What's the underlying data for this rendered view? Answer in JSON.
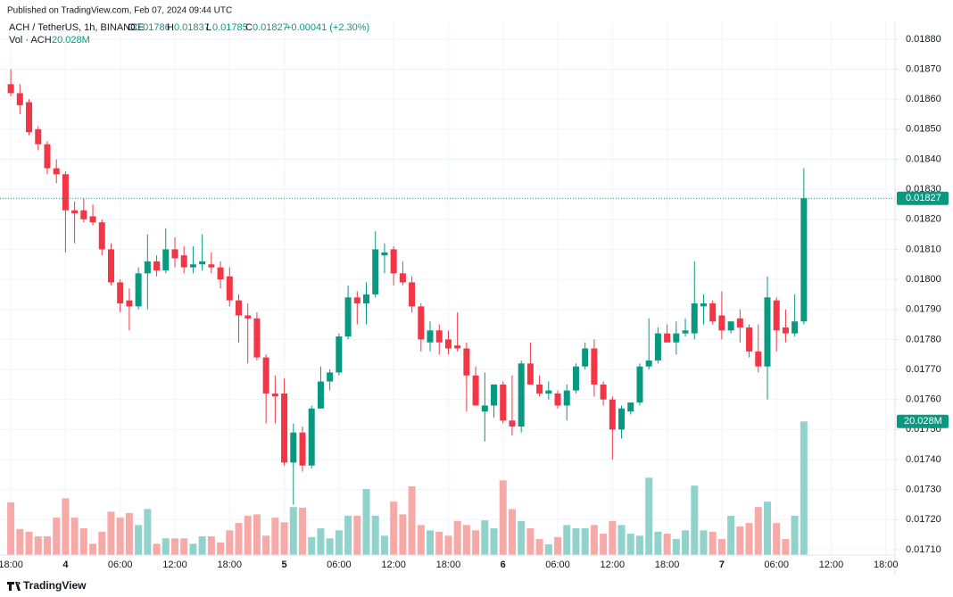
{
  "header": {
    "published": "Published on TradingView.com, Feb 07, 2024 09:44 UTC",
    "brand": "TradingView"
  },
  "chart_data": {
    "type": "candlestick",
    "title": "ACH / TetherUS, 1h, BINANCE",
    "legend_labels": {
      "open": "O",
      "high": "H",
      "low": "L",
      "close": "C"
    },
    "change": "+0.00041 (+2.30%)",
    "up_color": "#089981",
    "down_color": "#f23645",
    "x": [
      "3 18:00",
      "3 19:00",
      "3 20:00",
      "3 21:00",
      "3 22:00",
      "3 23:00",
      "4 00:00",
      "4 01:00",
      "4 02:00",
      "4 03:00",
      "4 04:00",
      "4 05:00",
      "4 06:00",
      "4 07:00",
      "4 08:00",
      "4 09:00",
      "4 10:00",
      "4 11:00",
      "4 12:00",
      "4 13:00",
      "4 14:00",
      "4 15:00",
      "4 16:00",
      "4 17:00",
      "4 18:00",
      "4 19:00",
      "4 20:00",
      "4 21:00",
      "4 22:00",
      "4 23:00",
      "5 00:00",
      "5 01:00",
      "5 02:00",
      "5 03:00",
      "5 04:00",
      "5 05:00",
      "5 06:00",
      "5 07:00",
      "5 08:00",
      "5 09:00",
      "5 10:00",
      "5 11:00",
      "5 12:00",
      "5 13:00",
      "5 14:00",
      "5 15:00",
      "5 16:00",
      "5 17:00",
      "5 18:00",
      "5 19:00",
      "5 20:00",
      "5 21:00",
      "5 22:00",
      "5 23:00",
      "6 00:00",
      "6 01:00",
      "6 02:00",
      "6 03:00",
      "6 04:00",
      "6 05:00",
      "6 06:00",
      "6 07:00",
      "6 08:00",
      "6 09:00",
      "6 10:00",
      "6 11:00",
      "6 12:00",
      "6 13:00",
      "6 14:00",
      "6 15:00",
      "6 16:00",
      "6 17:00",
      "6 18:00",
      "6 19:00",
      "6 20:00",
      "6 21:00",
      "6 22:00",
      "6 23:00",
      "7 00:00",
      "7 01:00",
      "7 02:00",
      "7 03:00",
      "7 04:00",
      "7 05:00",
      "7 06:00",
      "7 07:00",
      "7 08:00",
      "7 09:00"
    ],
    "open": [
      0.01865,
      0.01862,
      0.01859,
      0.0185,
      0.01845,
      0.01837,
      0.01835,
      0.01823,
      0.01823,
      0.01821,
      0.01819,
      0.0181,
      0.01799,
      0.01793,
      0.01791,
      0.01802,
      0.01806,
      0.01803,
      0.0181,
      0.01808,
      0.01804,
      0.01805,
      0.01805,
      0.01804,
      0.01801,
      0.01793,
      0.01788,
      0.01787,
      0.01774,
      0.01762,
      0.01762,
      0.01739,
      0.01749,
      0.01738,
      0.01757,
      0.01766,
      0.01769,
      0.01781,
      0.01794,
      0.01792,
      0.01795,
      0.01808,
      0.0181,
      0.01802,
      0.01799,
      0.01791,
      0.01779,
      0.01783,
      0.0178,
      0.01778,
      0.01777,
      0.01768,
      0.01756,
      0.01758,
      0.01765,
      0.01753,
      0.01751,
      0.01772,
      0.01765,
      0.01762,
      0.01762,
      0.01758,
      0.01763,
      0.01771,
      0.01777,
      0.01765,
      0.0176,
      0.0175,
      0.01756,
      0.01759,
      0.01771,
      0.01773,
      0.01782,
      0.01779,
      0.01782,
      0.01782,
      0.01791,
      0.01792,
      0.01788,
      0.01783,
      0.01787,
      0.01784,
      0.01776,
      0.01771,
      0.01793,
      0.01784,
      0.01782,
      0.01786
    ],
    "high": [
      0.0187,
      0.01865,
      0.0186,
      0.01851,
      0.01846,
      0.0184,
      0.01836,
      0.01826,
      0.01827,
      0.01825,
      0.0182,
      0.01812,
      0.018,
      0.01797,
      0.01804,
      0.01815,
      0.01808,
      0.01817,
      0.01814,
      0.01811,
      0.01811,
      0.01815,
      0.01809,
      0.01806,
      0.01804,
      0.01795,
      0.01792,
      0.01789,
      0.01775,
      0.01768,
      0.01767,
      0.01752,
      0.01751,
      0.01758,
      0.01771,
      0.0177,
      0.01782,
      0.01798,
      0.01796,
      0.01799,
      0.01816,
      0.01812,
      0.01811,
      0.01806,
      0.01801,
      0.01792,
      0.01786,
      0.01785,
      0.01783,
      0.01789,
      0.01779,
      0.01771,
      0.01769,
      0.01765,
      0.01766,
      0.01768,
      0.01773,
      0.01779,
      0.01768,
      0.01766,
      0.01763,
      0.01765,
      0.01772,
      0.01779,
      0.0178,
      0.01766,
      0.01761,
      0.01758,
      0.01759,
      0.01772,
      0.01787,
      0.01784,
      0.01785,
      0.01786,
      0.01787,
      0.01806,
      0.01795,
      0.01793,
      0.01796,
      0.01786,
      0.0179,
      0.01785,
      0.01785,
      0.01801,
      0.01794,
      0.0179,
      0.01795,
      0.01837
    ],
    "low": [
      0.01861,
      0.01855,
      0.01848,
      0.01843,
      0.01835,
      0.01832,
      0.01809,
      0.01812,
      0.01819,
      0.01818,
      0.01808,
      0.01798,
      0.01789,
      0.01783,
      0.0179,
      0.0179,
      0.01801,
      0.01802,
      0.01804,
      0.01802,
      0.01802,
      0.01803,
      0.01802,
      0.01797,
      0.01791,
      0.01779,
      0.01772,
      0.01773,
      0.01752,
      0.01752,
      0.01738,
      0.01725,
      0.01736,
      0.01737,
      0.01757,
      0.01763,
      0.01768,
      0.0178,
      0.01785,
      0.01785,
      0.01794,
      0.01802,
      0.01798,
      0.01798,
      0.01789,
      0.01776,
      0.01776,
      0.01775,
      0.01775,
      0.01776,
      0.01756,
      0.01758,
      0.01746,
      0.01754,
      0.01752,
      0.01748,
      0.01749,
      0.01765,
      0.01761,
      0.0176,
      0.01757,
      0.01753,
      0.01762,
      0.0177,
      0.01761,
      0.01758,
      0.0174,
      0.01747,
      0.01755,
      0.01758,
      0.0177,
      0.01772,
      0.01779,
      0.01775,
      0.01781,
      0.0178,
      0.01785,
      0.01785,
      0.0178,
      0.01782,
      0.01779,
      0.01774,
      0.01769,
      0.0176,
      0.01776,
      0.01779,
      0.01781,
      0.01785
    ],
    "close": [
      0.01862,
      0.01858,
      0.01849,
      0.01845,
      0.01837,
      0.01835,
      0.01823,
      0.01822,
      0.0182,
      0.01819,
      0.0181,
      0.01799,
      0.01792,
      0.01791,
      0.01802,
      0.01806,
      0.01803,
      0.0181,
      0.01807,
      0.01804,
      0.01805,
      0.01806,
      0.01804,
      0.018,
      0.01793,
      0.01788,
      0.01787,
      0.01774,
      0.01762,
      0.01761,
      0.01739,
      0.01749,
      0.01738,
      0.01757,
      0.01766,
      0.01769,
      0.01781,
      0.01794,
      0.01792,
      0.01795,
      0.0181,
      0.01809,
      0.01802,
      0.01799,
      0.01791,
      0.0178,
      0.01783,
      0.01779,
      0.01777,
      0.01777,
      0.01768,
      0.01758,
      0.01758,
      0.01765,
      0.01753,
      0.01751,
      0.01772,
      0.01765,
      0.01762,
      0.01763,
      0.01758,
      0.01763,
      0.01771,
      0.01777,
      0.01765,
      0.0176,
      0.0175,
      0.01757,
      0.01759,
      0.01771,
      0.01773,
      0.01782,
      0.01779,
      0.01782,
      0.01783,
      0.01792,
      0.01792,
      0.01786,
      0.01783,
      0.01786,
      0.01784,
      0.01776,
      0.01771,
      0.01794,
      0.01783,
      0.01782,
      0.01786,
      0.01827
    ],
    "volume": {
      "name": "Vol · ACH",
      "up_color": "#92d2cc",
      "down_color": "#f7a9a7",
      "ylim": [
        0,
        80
      ],
      "values": [
        7.9,
        3.9,
        3.5,
        2.8,
        2.8,
        5.6,
        8.5,
        5.6,
        4.0,
        1.7,
        3.5,
        6.5,
        5.6,
        6.3,
        4.5,
        6.9,
        1.7,
        2.5,
        2.5,
        2.5,
        1.7,
        2.8,
        2.8,
        1.9,
        3.7,
        4.8,
        5.9,
        6.1,
        2.9,
        5.6,
        4.9,
        7.2,
        7.1,
        2.7,
        4.0,
        2.5,
        3.7,
        5.9,
        5.9,
        9.9,
        5.9,
        2.9,
        8.0,
        6.1,
        10.3,
        4.5,
        3.7,
        3.5,
        2.9,
        5.1,
        4.5,
        3.7,
        5.2,
        4.0,
        11.2,
        6.9,
        5.1,
        4.0,
        2.4,
        1.6,
        2.7,
        4.5,
        4.0,
        4.0,
        4.5,
        3.2,
        5.1,
        4.5,
        3.2,
        2.9,
        11.6,
        3.5,
        3.2,
        2.4,
        3.7,
        10.4,
        3.7,
        3.5,
        2.4,
        5.9,
        4.3,
        4.8,
        7.2,
        8.0,
        4.8,
        2.4,
        5.9,
        20.028
      ],
      "value_labels": [
        null,
        null,
        null,
        null,
        null,
        null,
        null,
        null,
        null,
        null,
        null,
        null,
        null,
        null,
        null,
        null,
        null,
        null,
        null,
        null,
        null,
        null,
        null,
        null,
        null,
        null,
        null,
        null,
        null,
        null,
        null,
        null,
        null,
        null,
        null,
        null,
        null,
        null,
        null,
        null,
        null,
        null,
        null,
        null,
        null,
        null,
        null,
        null,
        null,
        null,
        null,
        null,
        null,
        null,
        null,
        null,
        null,
        null,
        null,
        null,
        null,
        null,
        null,
        null,
        null,
        null,
        null,
        null,
        null,
        null,
        null,
        null,
        null,
        null,
        null,
        null,
        null,
        null,
        null,
        null,
        null,
        null,
        null,
        null,
        null,
        null,
        null,
        "20.028M"
      ]
    },
    "xlim": [
      "3 17:30",
      "7 19:00"
    ],
    "xticks": [
      {
        "value": "3 18:00",
        "label": "18:00"
      },
      {
        "value": "4 00:00",
        "label": "4"
      },
      {
        "value": "4 06:00",
        "label": "06:00"
      },
      {
        "value": "4 12:00",
        "label": "12:00"
      },
      {
        "value": "4 18:00",
        "label": "18:00"
      },
      {
        "value": "5 00:00",
        "label": "5"
      },
      {
        "value": "5 06:00",
        "label": "06:00"
      },
      {
        "value": "5 12:00",
        "label": "12:00"
      },
      {
        "value": "5 18:00",
        "label": "18:00"
      },
      {
        "value": "6 00:00",
        "label": "6"
      },
      {
        "value": "6 06:00",
        "label": "06:00"
      },
      {
        "value": "6 12:00",
        "label": "12:00"
      },
      {
        "value": "6 18:00",
        "label": "18:00"
      },
      {
        "value": "7 00:00",
        "label": "7"
      },
      {
        "value": "7 06:00",
        "label": "06:00"
      },
      {
        "value": "7 12:00",
        "label": "12:00"
      },
      {
        "value": "7 18:00",
        "label": "18:00"
      }
    ],
    "ylim": [
      0.017082,
      0.018859
    ],
    "yticks": [
      {
        "value": 0.0171,
        "label": "0.01710"
      },
      {
        "value": 0.0172,
        "label": "0.01720"
      },
      {
        "value": 0.0173,
        "label": "0.01730"
      },
      {
        "value": 0.0174,
        "label": "0.01740"
      },
      {
        "value": 0.0175,
        "label": "0.01750"
      },
      {
        "value": 0.0176,
        "label": "0.01760"
      },
      {
        "value": 0.0177,
        "label": "0.01770"
      },
      {
        "value": 0.0178,
        "label": "0.01780"
      },
      {
        "value": 0.0179,
        "label": "0.01790"
      },
      {
        "value": 0.018,
        "label": "0.01800"
      },
      {
        "value": 0.0181,
        "label": "0.01810"
      },
      {
        "value": 0.0182,
        "label": "0.01820"
      },
      {
        "value": 0.0183,
        "label": "0.01830"
      },
      {
        "value": 0.0184,
        "label": "0.01840"
      },
      {
        "value": 0.0185,
        "label": "0.01850"
      },
      {
        "value": 0.0186,
        "label": "0.01860"
      },
      {
        "value": 0.0187,
        "label": "0.01870"
      },
      {
        "value": 0.0188,
        "label": "0.01880"
      }
    ],
    "grid": true
  }
}
